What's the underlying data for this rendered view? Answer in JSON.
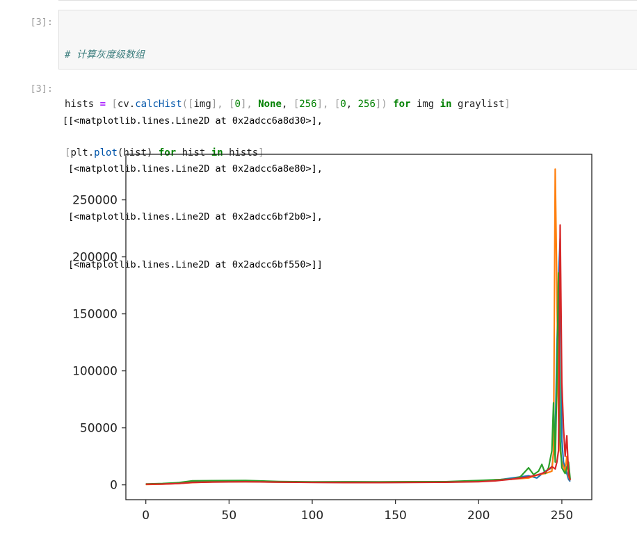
{
  "input_cell": {
    "prompt": "[3]:",
    "comment": "# 计算灰度级数组",
    "line2": {
      "t1": "hists ",
      "t2": "=",
      "t3": " ",
      "t4": "[",
      "t5": "cv",
      "t6": ".",
      "t7": "calcHist",
      "t8": "([",
      "t9": "img",
      "t10": "],",
      "t11": " ",
      "t12": "[",
      "t13": "0",
      "t14": "],",
      "t15": " ",
      "t16": "None",
      "t17": ",",
      "t18": " ",
      "t19": "[",
      "t20": "256",
      "t21": "],",
      "t22": " ",
      "t23": "[",
      "t24": "0",
      "t25": ",",
      "t26": " ",
      "t27": "256",
      "t28": "])",
      "t29": " ",
      "t30": "for",
      "t31": " img ",
      "t32": "in",
      "t33": " graylist",
      "t34": "]"
    },
    "line3": {
      "t1": "[",
      "t2": "plt",
      "t3": ".",
      "t4": "plot",
      "t5": "(hist) ",
      "t6": "for",
      "t7": " hist ",
      "t8": "in",
      "t9": " hists",
      "t10": "]"
    }
  },
  "output_cell": {
    "prompt": "[3]:",
    "lines": [
      "[[<matplotlib.lines.Line2D at 0x2adcc6a8d30>],",
      " [<matplotlib.lines.Line2D at 0x2adcc6a8e80>],",
      " [<matplotlib.lines.Line2D at 0x2adcc6bf2b0>],",
      " [<matplotlib.lines.Line2D at 0x2adcc6bf550>]]"
    ]
  },
  "chart_data": {
    "type": "line",
    "xlim": [
      -12,
      268
    ],
    "ylim": [
      -13000,
      290000
    ],
    "x_ticks": [
      0,
      50,
      100,
      150,
      200,
      250
    ],
    "y_ticks": [
      0,
      50000,
      100000,
      150000,
      200000,
      250000
    ],
    "x_tick_labels": [
      "0",
      "50",
      "100",
      "150",
      "200",
      "250"
    ],
    "y_tick_labels": [
      "0",
      "50000",
      "100000",
      "150000",
      "200000",
      "250000"
    ],
    "grid": false,
    "series": [
      {
        "color": "#1f77b4",
        "x": [
          0,
          10,
          20,
          28,
          40,
          60,
          80,
          100,
          120,
          140,
          160,
          180,
          200,
          210,
          220,
          230,
          235,
          240,
          244,
          246,
          247,
          248,
          249,
          250,
          251,
          252,
          253,
          254,
          255
        ],
        "y": [
          500,
          800,
          1500,
          2500,
          2800,
          2700,
          2500,
          2300,
          2200,
          2200,
          2300,
          2500,
          3000,
          4000,
          6000,
          8000,
          6000,
          12000,
          15000,
          40000,
          120000,
          180000,
          216000,
          40000,
          20000,
          15000,
          10000,
          5000,
          3000
        ]
      },
      {
        "color": "#ff7f0e",
        "x": [
          0,
          10,
          20,
          28,
          40,
          60,
          80,
          100,
          120,
          140,
          160,
          180,
          200,
          210,
          220,
          230,
          236,
          240,
          244,
          245,
          246,
          247,
          248,
          249,
          250,
          252,
          253,
          254,
          255
        ],
        "y": [
          300,
          600,
          1200,
          2000,
          2600,
          2800,
          2500,
          2300,
          2300,
          2500,
          2800,
          2600,
          3200,
          4500,
          5000,
          6000,
          9000,
          10000,
          12000,
          30000,
          277000,
          170000,
          60000,
          30000,
          20000,
          12000,
          25000,
          8000,
          4000
        ]
      },
      {
        "color": "#2ca02c",
        "x": [
          0,
          10,
          20,
          28,
          40,
          60,
          80,
          100,
          120,
          140,
          160,
          180,
          200,
          210,
          220,
          225,
          230,
          233,
          236,
          238,
          240,
          242,
          244,
          245,
          246,
          247,
          248,
          249,
          250,
          252,
          254,
          255
        ],
        "y": [
          800,
          1200,
          2000,
          3500,
          3700,
          3900,
          3000,
          2600,
          2700,
          2600,
          2700,
          2800,
          3800,
          4500,
          5000,
          7000,
          15000,
          9000,
          12000,
          18000,
          10000,
          15000,
          30000,
          72000,
          20000,
          90000,
          186000,
          40000,
          15000,
          10000,
          20000,
          5000
        ]
      },
      {
        "color": "#d62728",
        "x": [
          0,
          10,
          20,
          28,
          40,
          60,
          80,
          100,
          120,
          140,
          160,
          180,
          200,
          210,
          220,
          230,
          236,
          240,
          244,
          246,
          247,
          248,
          249,
          250,
          251,
          252,
          253,
          254,
          255
        ],
        "y": [
          600,
          700,
          1200,
          2200,
          2500,
          2700,
          2400,
          2100,
          2000,
          2000,
          2100,
          2300,
          2700,
          3500,
          5000,
          7000,
          9000,
          11000,
          16000,
          14000,
          20000,
          30000,
          228000,
          90000,
          50000,
          25000,
          43000,
          10000,
          4000
        ]
      }
    ]
  }
}
